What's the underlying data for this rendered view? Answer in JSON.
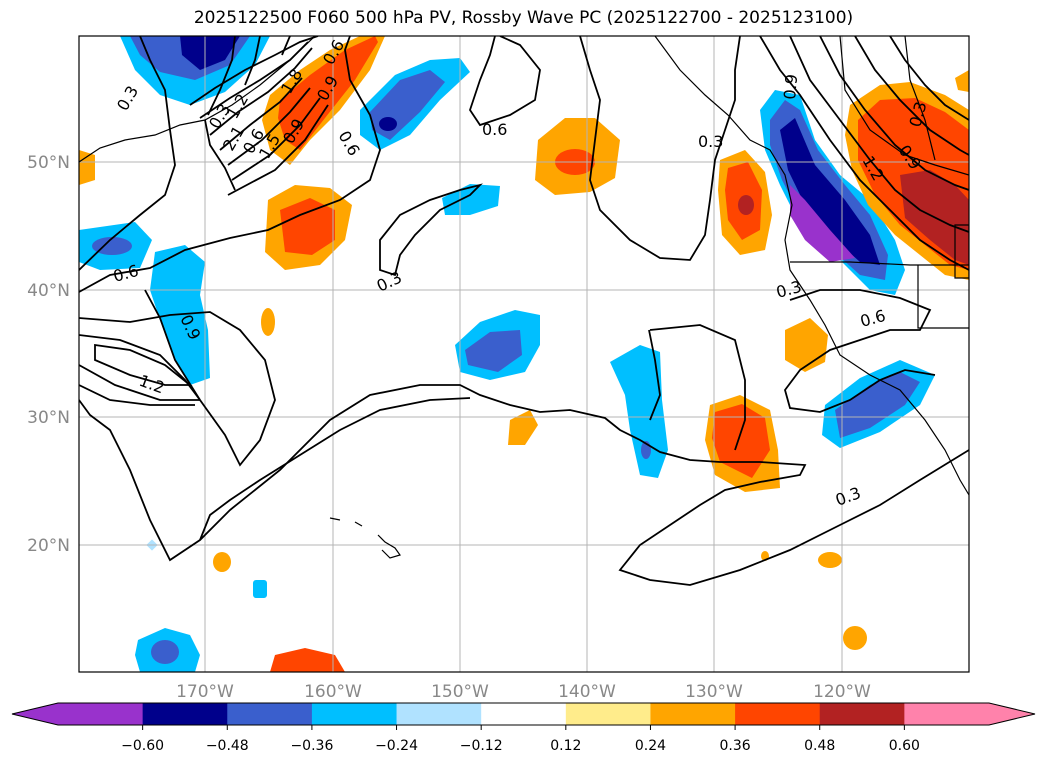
{
  "title": "2025122500 F060 500 hPa PV, Rossby Wave PC (2025122700 - 2025123100)",
  "map": {
    "lon_labels": [
      "170°W",
      "160°W",
      "150°W",
      "140°W",
      "130°W",
      "120°W"
    ],
    "lat_labels": [
      "50°N",
      "40°N",
      "30°N",
      "20°N"
    ],
    "contour_labels": [
      "0.3",
      "0.6",
      "0.9",
      "1.2",
      "1.5",
      "1.8",
      "2.1",
      "0.6",
      "0.3",
      "0.6",
      "0.9",
      "1.2",
      "0.3",
      "0.9",
      "0.3",
      "0.3",
      "0.6",
      "0.3",
      "1.2",
      "0.9",
      "0.6",
      "0.3",
      "0.6",
      "0.9"
    ]
  },
  "colorbar": {
    "ticks": [
      "−0.60",
      "−0.48",
      "−0.36",
      "−0.24",
      "−0.12",
      "0.12",
      "0.24",
      "0.36",
      "0.48",
      "0.60"
    ],
    "colors": {
      "under": "#9932cc",
      "bins": [
        "#00008b",
        "#3a5fcd",
        "#00bfff",
        "#b0e2ff",
        "#ffffff",
        "#ffec8b",
        "#ffa500",
        "#ff4500",
        "#b22222"
      ],
      "over": "#ff82ab"
    }
  }
}
